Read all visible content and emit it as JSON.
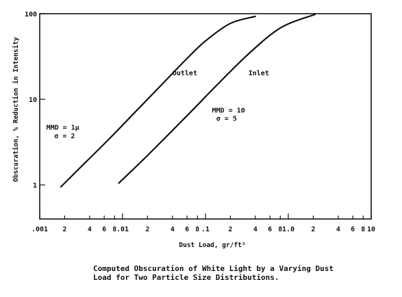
{
  "caption": {
    "line1": "Computed Obscuration of White Light by a Varying Dust",
    "line2": "Load for Two Particle Size Distributions."
  },
  "chart_data": {
    "type": "line",
    "xscale": "log",
    "yscale": "log",
    "xlim": [
      0.001,
      10
    ],
    "ylim": [
      0.4,
      100
    ],
    "xlabel": "Dust Load, gr/ft³",
    "ylabel": "Obscuration, % Reduction in Intensity",
    "grid": false,
    "x_ticks": [
      {
        "value": 0.001,
        "label": ".001"
      },
      {
        "value": 0.002,
        "label": "2"
      },
      {
        "value": 0.004,
        "label": "4"
      },
      {
        "value": 0.006,
        "label": "6"
      },
      {
        "value": 0.008,
        "label": "8"
      },
      {
        "value": 0.01,
        "label": ".01"
      },
      {
        "value": 0.02,
        "label": "2"
      },
      {
        "value": 0.04,
        "label": "4"
      },
      {
        "value": 0.06,
        "label": "6"
      },
      {
        "value": 0.08,
        "label": "8"
      },
      {
        "value": 0.1,
        "label": ".1"
      },
      {
        "value": 0.2,
        "label": "2"
      },
      {
        "value": 0.4,
        "label": "4"
      },
      {
        "value": 0.6,
        "label": "6"
      },
      {
        "value": 0.8,
        "label": "8"
      },
      {
        "value": 1.0,
        "label": "1.0"
      },
      {
        "value": 2,
        "label": "2"
      },
      {
        "value": 4,
        "label": "4"
      },
      {
        "value": 6,
        "label": "6"
      },
      {
        "value": 8,
        "label": "8"
      },
      {
        "value": 10,
        "label": "10"
      }
    ],
    "y_ticks": [
      {
        "value": 1,
        "label": "1"
      },
      {
        "value": 10,
        "label": "10"
      },
      {
        "value": 100,
        "label": "100"
      }
    ],
    "series": [
      {
        "name": "Outlet",
        "x": [
          0.0018,
          0.0035,
          0.007,
          0.015,
          0.03,
          0.06,
          0.1,
          0.2,
          0.4
        ],
        "y": [
          0.95,
          1.8,
          3.5,
          7.5,
          15,
          30,
          48,
          77,
          93
        ]
      },
      {
        "name": "Inlet",
        "x": [
          0.009,
          0.018,
          0.035,
          0.07,
          0.15,
          0.3,
          0.6,
          1.0,
          2.1
        ],
        "y": [
          1.05,
          2.0,
          3.8,
          7.5,
          16,
          31,
          56,
          76,
          98
        ]
      }
    ],
    "annotations": [
      {
        "id": "outlet-label",
        "text": "Outlet",
        "x": 0.04,
        "y": 19
      },
      {
        "id": "inlet-label",
        "text": "Inlet",
        "x": 0.33,
        "y": 19
      },
      {
        "id": "inlet-mmd",
        "text": "MMD = 10",
        "x": 0.12,
        "y": 7.0
      },
      {
        "id": "inlet-sigma",
        "text": "σ = 5",
        "x": 0.135,
        "y": 5.6
      },
      {
        "id": "outlet-mmd",
        "text": "MMD = 1μ",
        "x": 0.0012,
        "y": 4.4
      },
      {
        "id": "outlet-sigma",
        "text": "σ = 2",
        "x": 0.0015,
        "y": 3.5
      }
    ]
  }
}
